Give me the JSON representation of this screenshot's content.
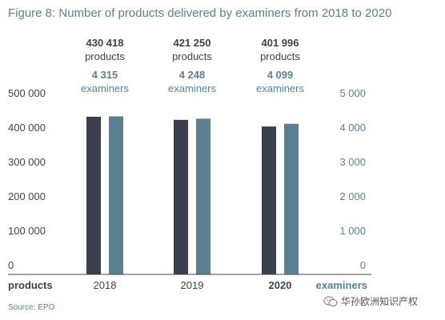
{
  "title": "Figure 8: Number of products delivered by examiners from 2018 to 2020",
  "source": "Source: EPO",
  "watermark": {
    "text": "华孙欧洲知识产权",
    "icon": "wechat-icon"
  },
  "colors": {
    "products_bar": "#3a3f4b",
    "examiners_bar": "#5e7e92",
    "title": "#5a8196",
    "examiners_text": "#5a8196",
    "products_text": "#3d4450"
  },
  "chart_data": {
    "type": "bar",
    "title": "Figure 8: Number of products delivered by examiners from 2018 to 2020",
    "categories": [
      "2018",
      "2019",
      "2020"
    ],
    "category_bold": [
      false,
      false,
      true
    ],
    "series": [
      {
        "name": "products",
        "axis": "left",
        "values": [
          430418,
          421250,
          401996
        ]
      },
      {
        "name": "examiners",
        "axis": "right",
        "values": [
          4315,
          4248,
          4099
        ]
      }
    ],
    "annotations": [
      {
        "products_value": "430 418",
        "products_unit": "products",
        "examiners_value": "4 315",
        "examiners_unit": "examiners"
      },
      {
        "products_value": "421 250",
        "products_unit": "products",
        "examiners_value": "4 248",
        "examiners_unit": "examiners"
      },
      {
        "products_value": "401 996",
        "products_unit": "products",
        "examiners_value": "4 099",
        "examiners_unit": "examiners"
      }
    ],
    "y_left": {
      "label": "products",
      "ylim": [
        0,
        500000
      ],
      "ticks": [
        0,
        100000,
        200000,
        300000,
        400000,
        500000
      ],
      "tick_labels": [
        "0",
        "100 000",
        "200 000",
        "300 000",
        "400 000",
        "500 000"
      ]
    },
    "y_right": {
      "label": "examiners",
      "ylim": [
        0,
        5000
      ],
      "ticks": [
        0,
        1000,
        2000,
        3000,
        4000,
        5000
      ],
      "tick_labels": [
        "0",
        "1 000",
        "2 000",
        "3 000",
        "4 000",
        "5 000"
      ]
    },
    "grid": false,
    "legend": "none"
  }
}
